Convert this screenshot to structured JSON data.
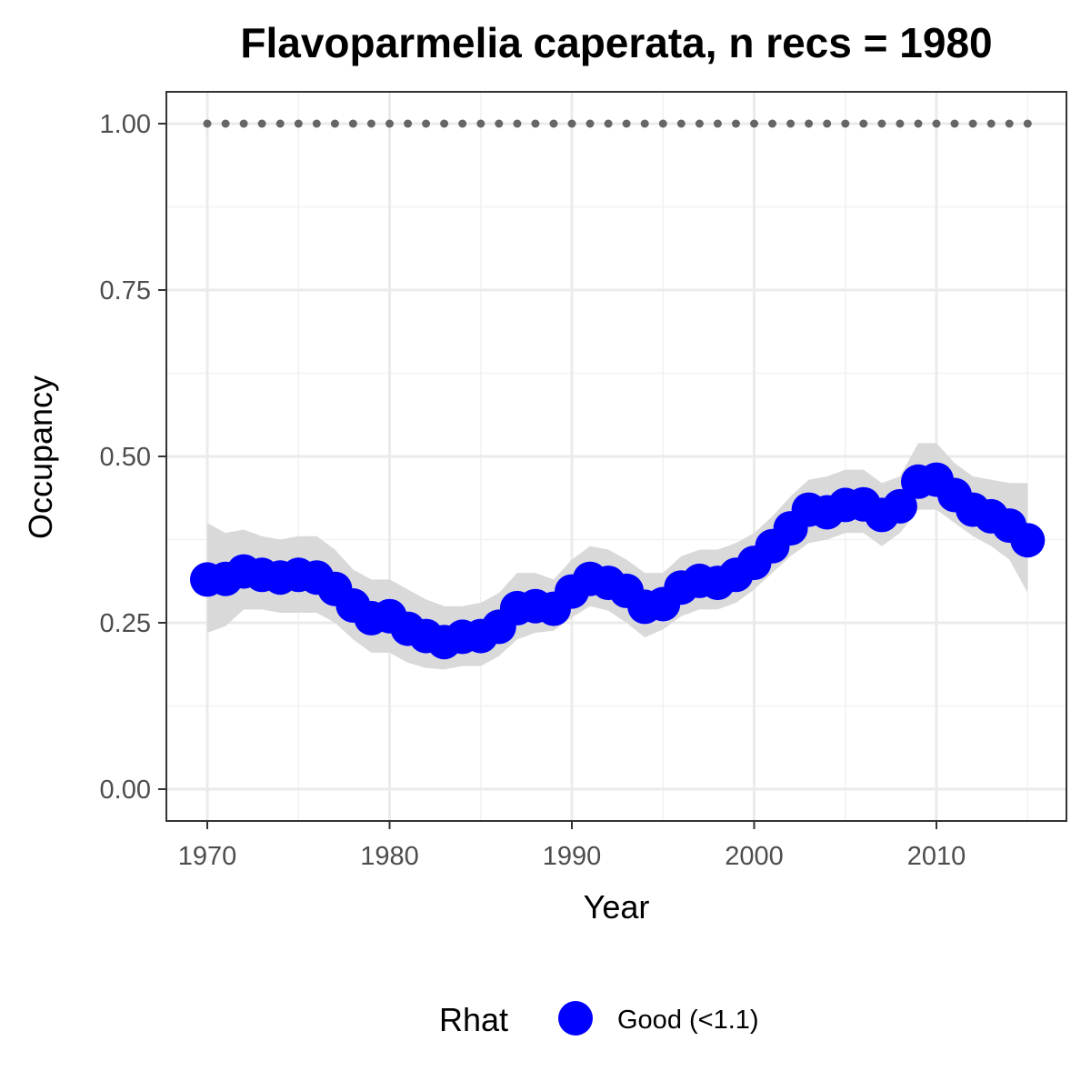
{
  "chart_data": {
    "type": "line",
    "title": "Flavoparmelia caperata, n recs = 1980",
    "xlabel": "Year",
    "ylabel": "Occupancy",
    "xlim": [
      1967.8,
      1917.2
    ],
    "ylim": [
      -0.045,
      1.045
    ],
    "x_ticks": [
      1970,
      1980,
      1990,
      2000,
      2010
    ],
    "x_tick_labels": [
      "1970",
      "1980",
      "1990",
      "2000",
      "2010"
    ],
    "y_ticks": [
      0,
      0.25,
      0.5,
      0.75,
      1
    ],
    "y_tick_labels": [
      "0.00",
      "0.25",
      "0.50",
      "0.75",
      "1.00"
    ],
    "y_minor_ticks": [
      0.125,
      0.375,
      0.625,
      0.875
    ],
    "x_minor_ticks": [
      1975,
      1985,
      1995,
      2005,
      2015
    ],
    "grid": true,
    "x": [
      1970,
      1971,
      1972,
      1973,
      1974,
      1975,
      1976,
      1977,
      1978,
      1979,
      1980,
      1981,
      1982,
      1983,
      1984,
      1985,
      1986,
      1987,
      1988,
      1989,
      1990,
      1991,
      1992,
      1993,
      1994,
      1995,
      1996,
      1997,
      1998,
      1999,
      2000,
      2001,
      2002,
      2003,
      2004,
      2005,
      2006,
      2007,
      2008,
      2009,
      2010,
      2011,
      2012,
      2013,
      2014,
      2015
    ],
    "series": [
      {
        "values": [
          0.315,
          0.316,
          0.327,
          0.322,
          0.318,
          0.322,
          0.318,
          0.301,
          0.276,
          0.257,
          0.26,
          0.241,
          0.23,
          0.221,
          0.229,
          0.23,
          0.244,
          0.272,
          0.275,
          0.271,
          0.297,
          0.316,
          0.31,
          0.298,
          0.274,
          0.278,
          0.303,
          0.313,
          0.31,
          0.322,
          0.34,
          0.365,
          0.392,
          0.42,
          0.416,
          0.427,
          0.428,
          0.412,
          0.425,
          0.462,
          0.465,
          0.442,
          0.42,
          0.41,
          0.396,
          0.374
        ],
        "lower": [
          0.235,
          0.245,
          0.27,
          0.27,
          0.265,
          0.265,
          0.265,
          0.25,
          0.225,
          0.205,
          0.205,
          0.19,
          0.182,
          0.18,
          0.185,
          0.185,
          0.2,
          0.225,
          0.235,
          0.238,
          0.258,
          0.275,
          0.268,
          0.25,
          0.228,
          0.24,
          0.26,
          0.27,
          0.27,
          0.28,
          0.3,
          0.325,
          0.35,
          0.37,
          0.375,
          0.385,
          0.385,
          0.365,
          0.385,
          0.42,
          0.42,
          0.4,
          0.38,
          0.365,
          0.345,
          0.295
        ],
        "upper": [
          0.4,
          0.385,
          0.39,
          0.38,
          0.375,
          0.38,
          0.38,
          0.36,
          0.33,
          0.315,
          0.315,
          0.3,
          0.285,
          0.275,
          0.275,
          0.28,
          0.295,
          0.325,
          0.325,
          0.315,
          0.345,
          0.365,
          0.36,
          0.345,
          0.325,
          0.325,
          0.35,
          0.36,
          0.36,
          0.37,
          0.385,
          0.41,
          0.44,
          0.465,
          0.47,
          0.48,
          0.48,
          0.46,
          0.47,
          0.52,
          0.52,
          0.49,
          0.47,
          0.465,
          0.46,
          0.46
        ],
        "color": "#0000ff"
      },
      {
        "values": [
          1,
          1,
          1,
          1,
          1,
          1,
          1,
          1,
          1,
          1,
          1,
          1,
          1,
          1,
          1,
          1,
          1,
          1,
          1,
          1,
          1,
          1,
          1,
          1,
          1,
          1,
          1,
          1,
          1,
          1,
          1,
          1,
          1,
          1,
          1,
          1,
          1,
          1,
          1,
          1,
          1,
          1,
          1,
          1,
          1,
          1
        ],
        "color": "#666666",
        "style": "dotted"
      }
    ],
    "ribbon_color": "#d9d9d9",
    "legend": {
      "title": "Rhat",
      "entries": [
        {
          "label": "Good (<1.1)",
          "color": "#0000ff"
        }
      ],
      "placement": "bottom"
    }
  }
}
